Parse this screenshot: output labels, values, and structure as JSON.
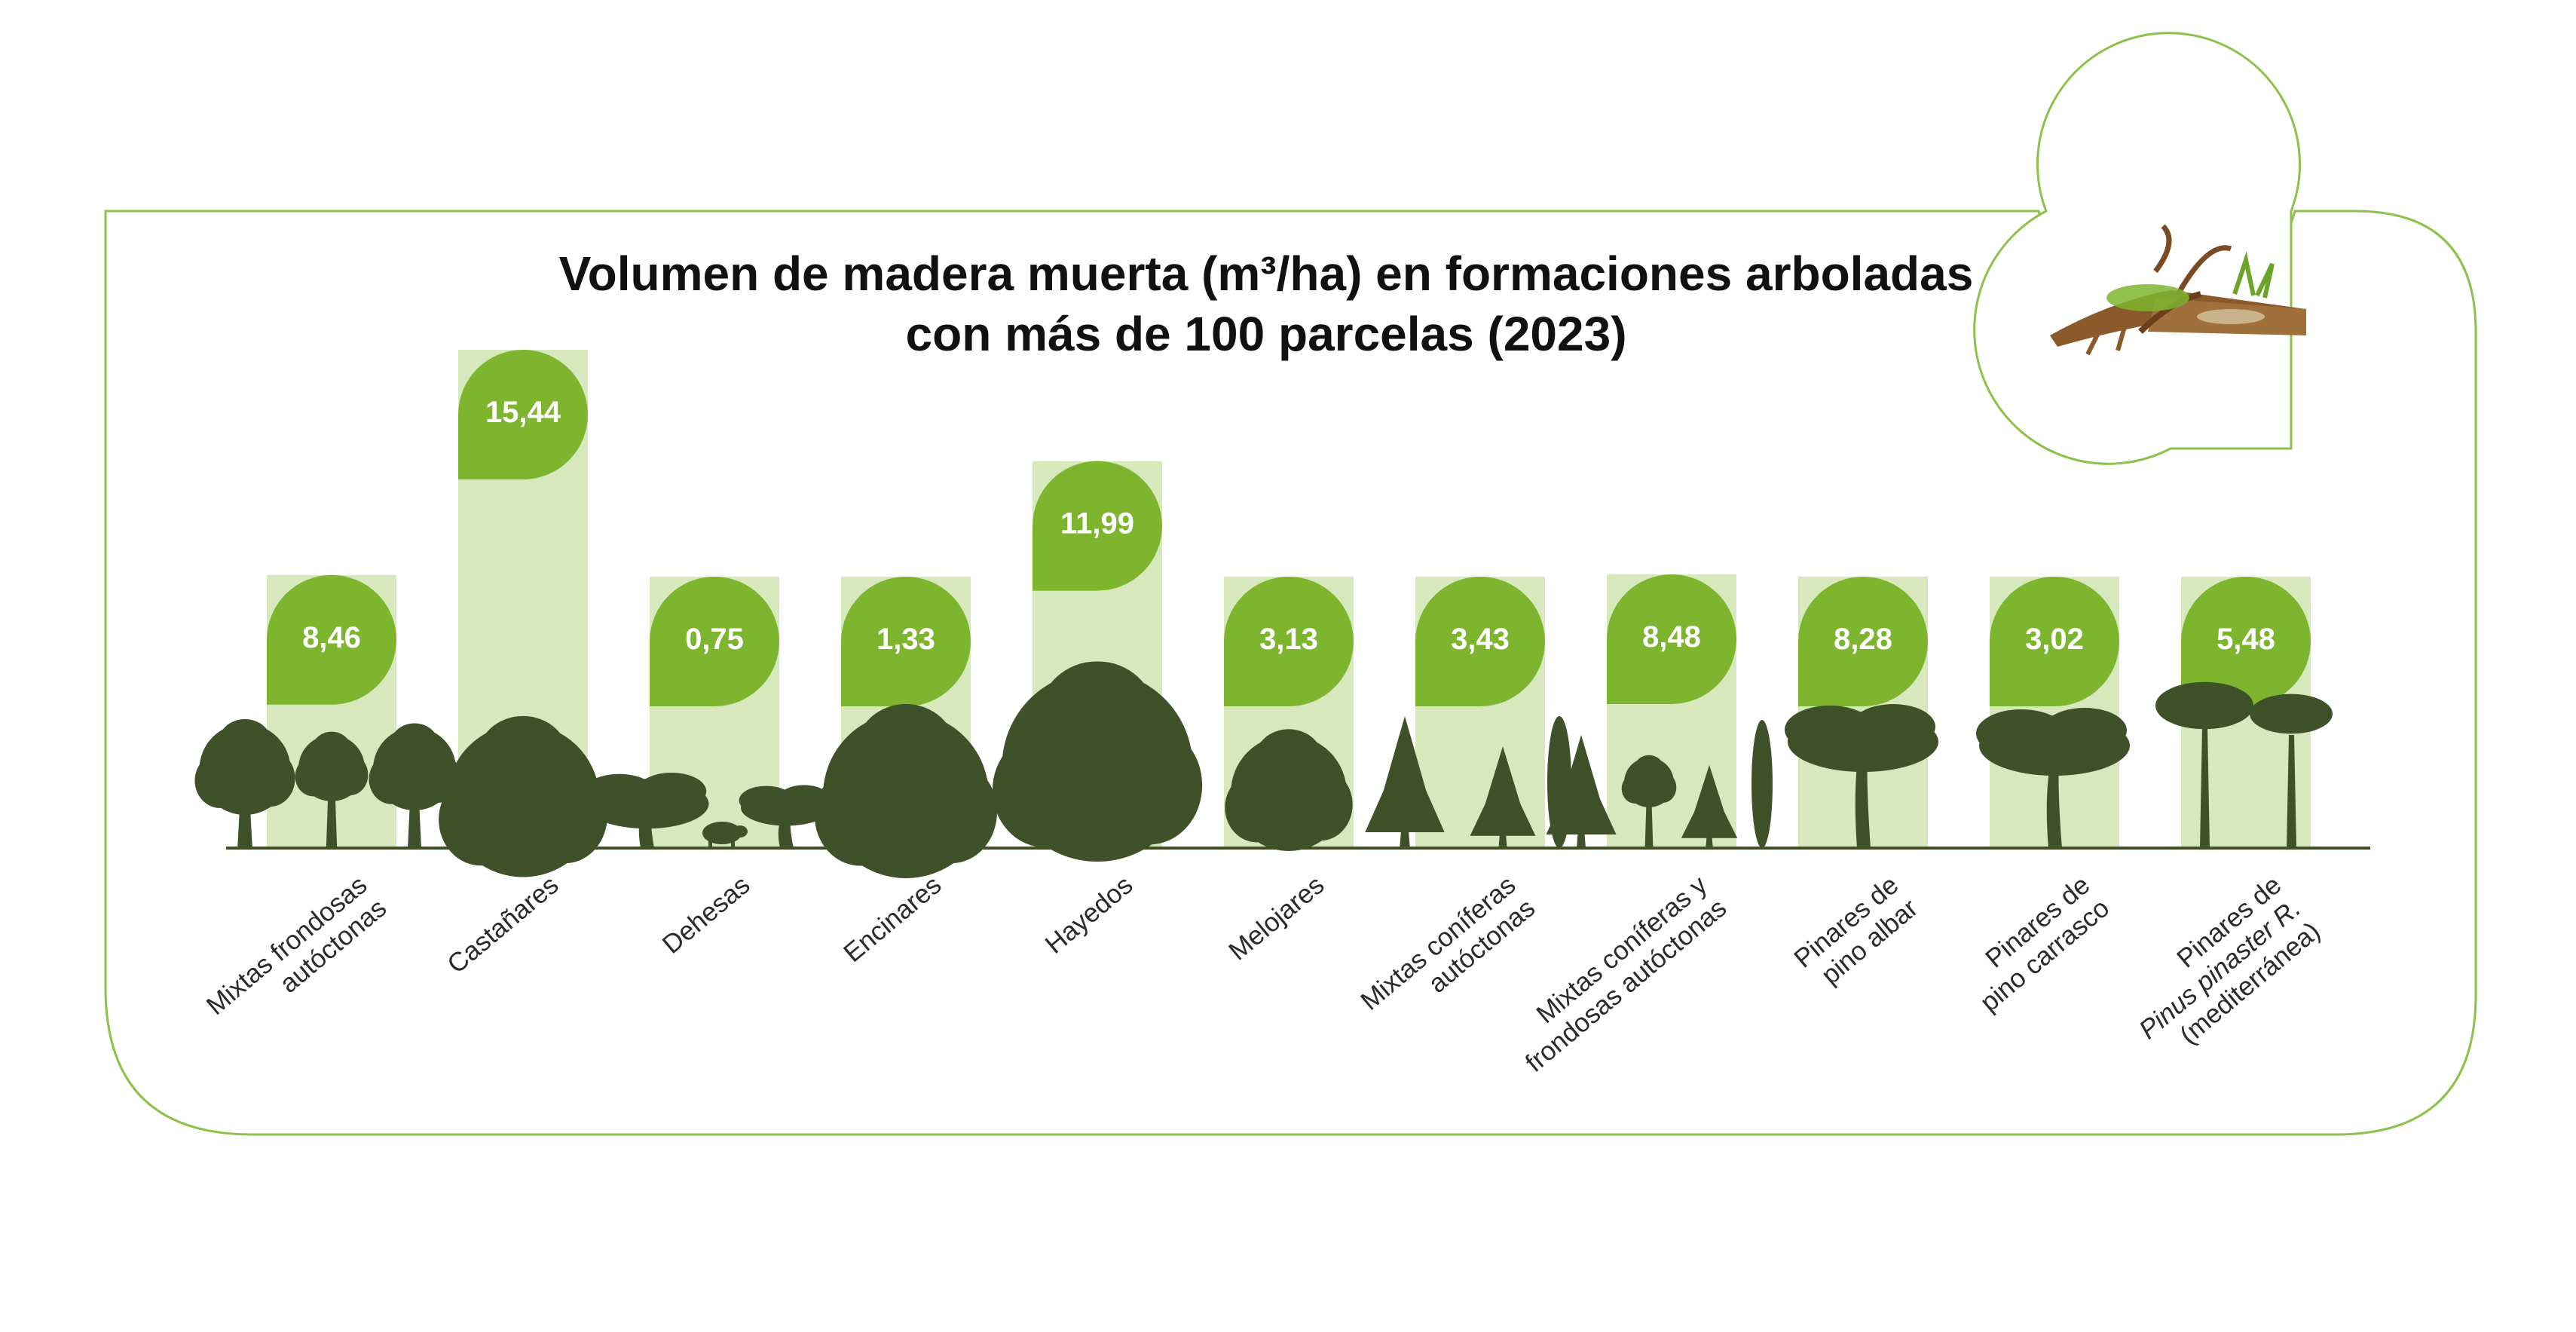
{
  "colors": {
    "frame": "#8cc14a",
    "bar": "#d7e8bd",
    "label_bubble": "#7db52e",
    "tree": "#3f5128",
    "axis": "#3f5128"
  },
  "chart_data": {
    "type": "bar",
    "title_lines": [
      "Volumen de madera muerta (m³/ha) en formaciones arboladas",
      "con más de 100 parcelas (2023)"
    ],
    "xlabel": "",
    "ylabel": "",
    "ylim": [
      0,
      16
    ],
    "grid": false,
    "legend": "none",
    "categories": [
      [
        "Mixtas frondosas",
        "autóctonas"
      ],
      [
        "Castañares"
      ],
      [
        "Dehesas"
      ],
      [
        "Encinares"
      ],
      [
        "Hayedos"
      ],
      [
        "Melojares"
      ],
      [
        "Mixtas coníferas",
        "autóctonas"
      ],
      [
        "Mixtas coníferas y",
        "frondosas autóctonas"
      ],
      [
        "Pinares de",
        "pino albar"
      ],
      [
        "Pinares de",
        "pino carrasco"
      ],
      [
        "Pinares de",
        "Pinus pinaster R.",
        "(mediterránea)"
      ]
    ],
    "italic_category_lines": [
      "Pinus pinaster R."
    ],
    "values": [
      8.46,
      15.44,
      0.75,
      1.33,
      11.99,
      3.13,
      3.43,
      8.48,
      8.28,
      3.02,
      5.48
    ],
    "value_labels": [
      "8,46",
      "15,44",
      "0,75",
      "1,33",
      "11,99",
      "3,13",
      "3,43",
      "8,48",
      "8,28",
      "3,02",
      "5,48"
    ],
    "icons": [
      "broadleaf-trees-icon",
      "chestnut-tree-icon",
      "dehesa-trees-pig-icon",
      "holm-oak-icon",
      "beech-tree-icon",
      "oak-tree-icon",
      "conifer-trees-icon",
      "mixed-conifer-broadleaf-icon",
      "scots-pine-icon",
      "aleppo-pine-icon",
      "maritime-pine-icon"
    ]
  },
  "decoration": {
    "icon": "deadwood-log-icon"
  }
}
